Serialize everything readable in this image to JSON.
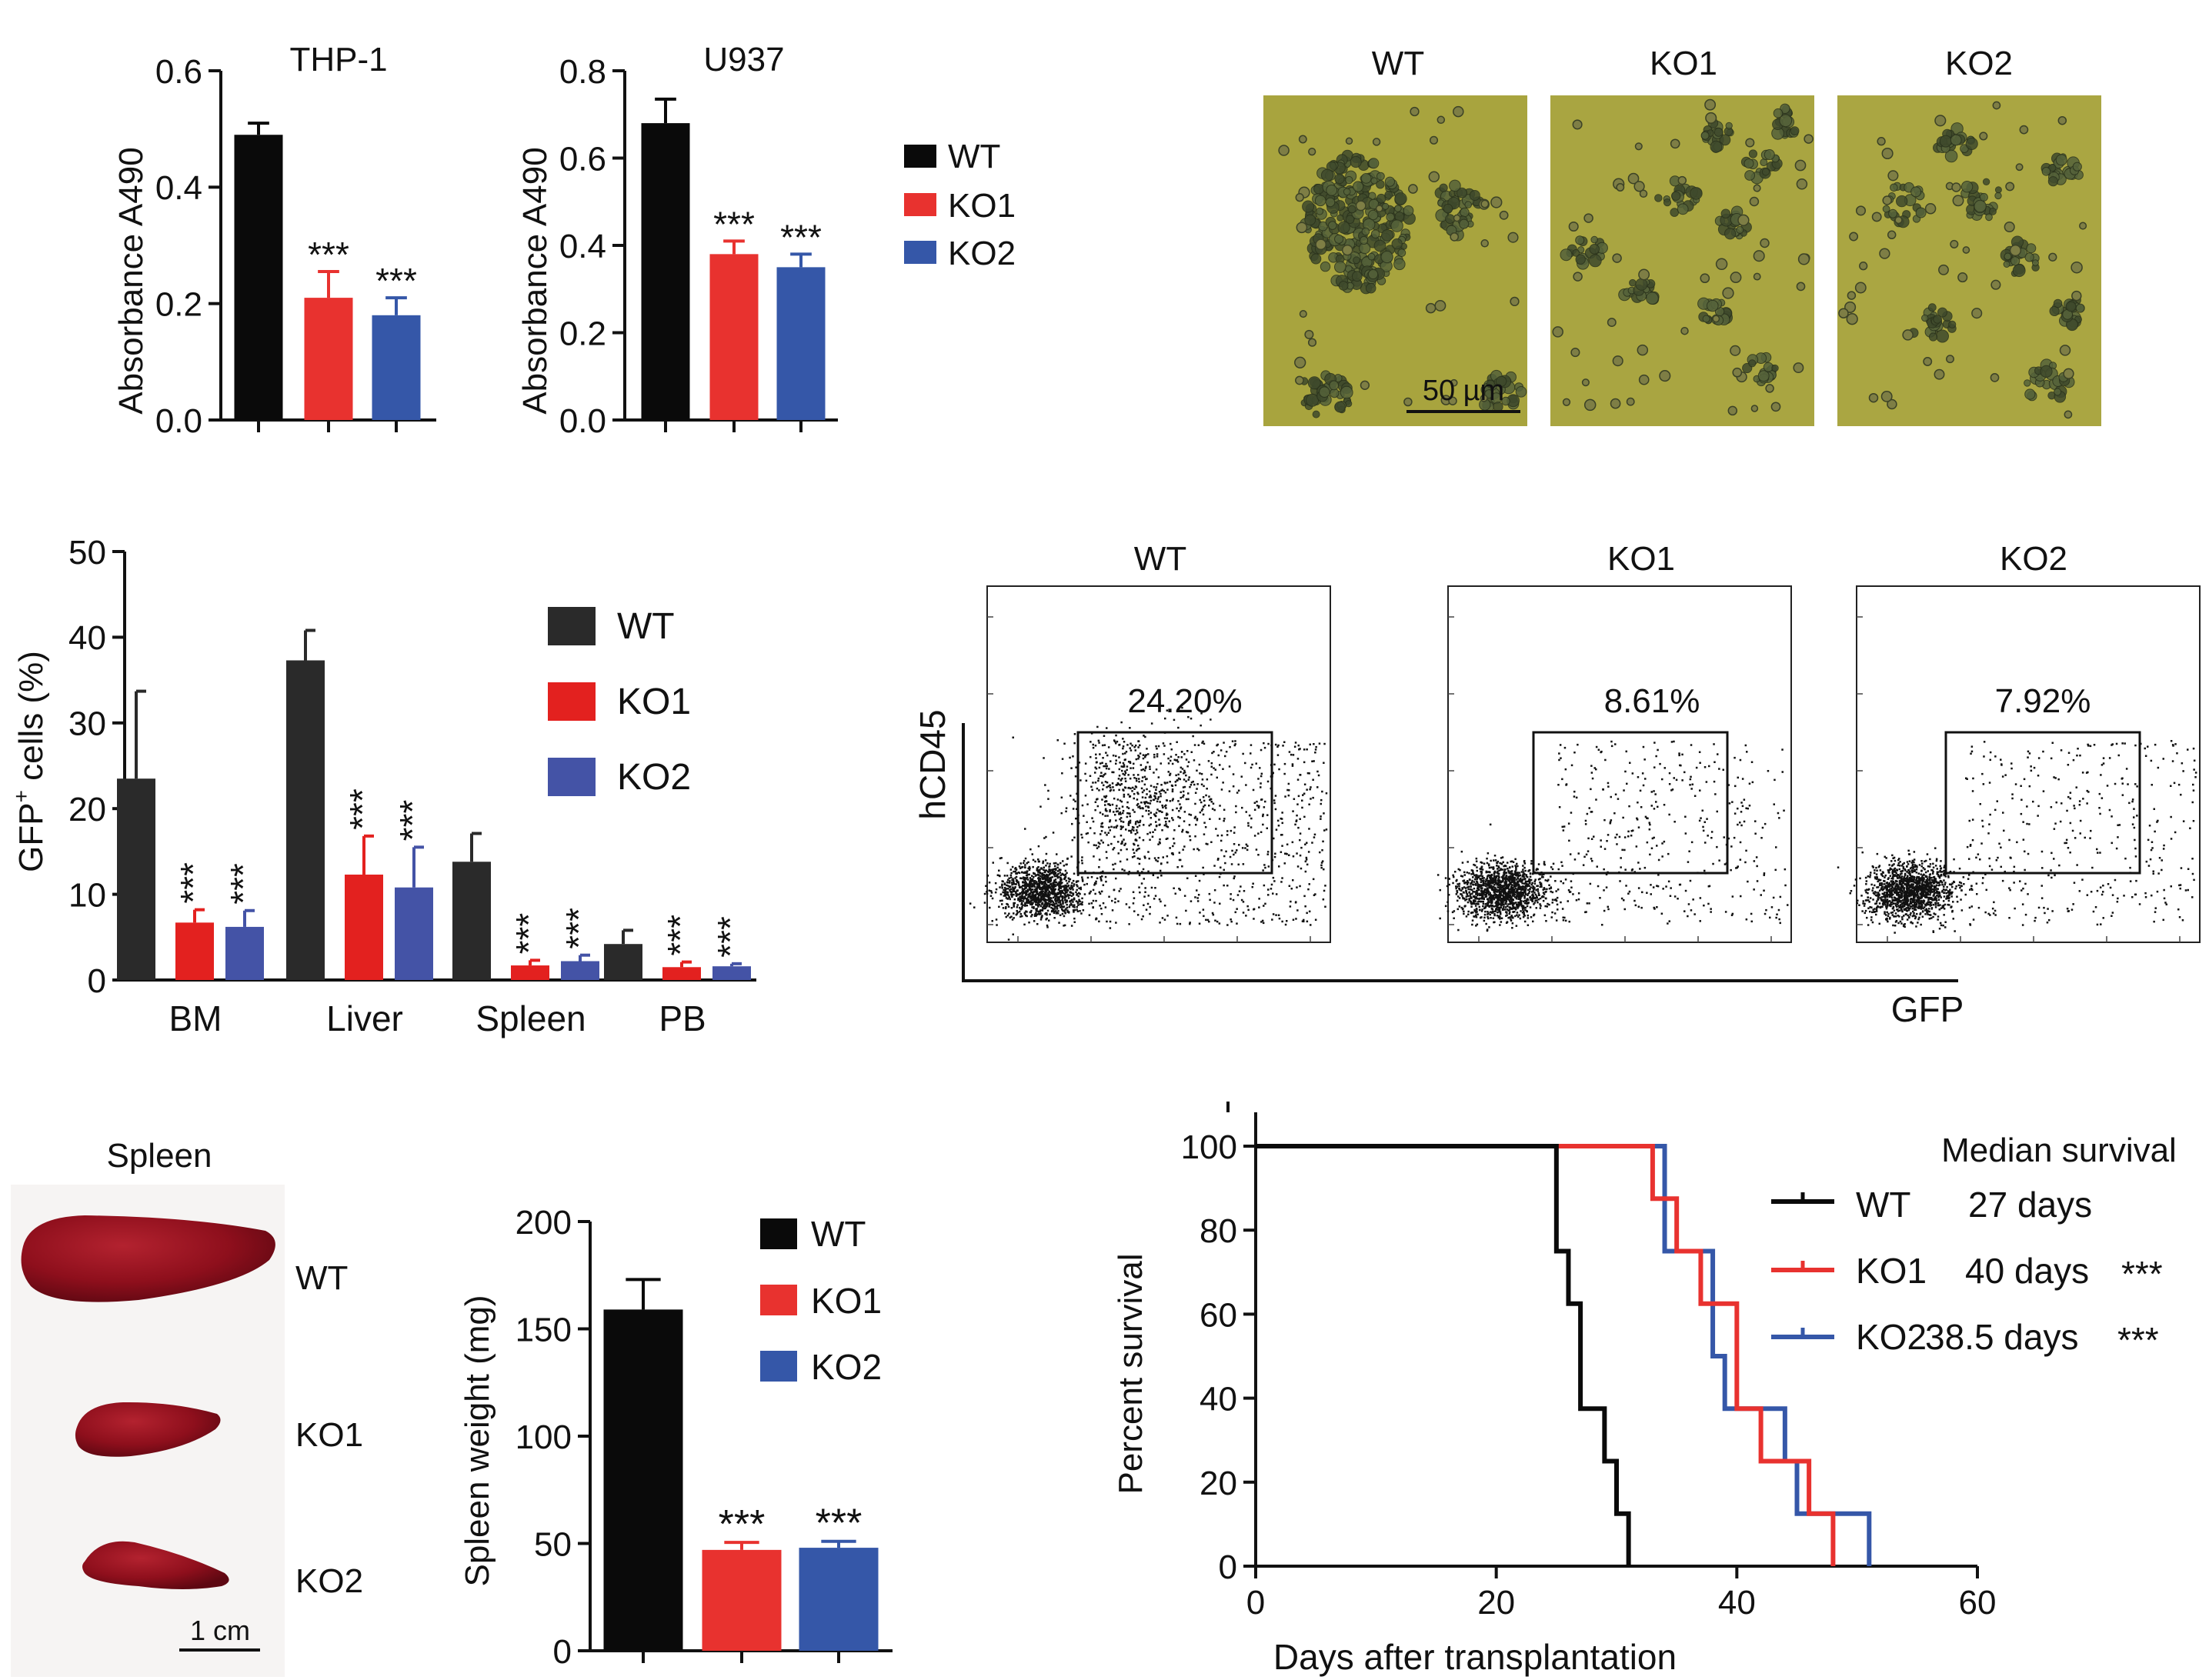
{
  "colors": {
    "wt": "#0a0a0a",
    "ko1": "#e8322f",
    "ko2": "#3557a8",
    "wt_panel_b": "#2a2a2a",
    "ko1_panel_b": "#e3211f",
    "ko2_panel_b": "#4453a6",
    "micro_bg": "#a8a43e",
    "spleen": "#8e0f1c"
  },
  "legend_top": [
    "WT",
    "KO1",
    "KO2"
  ],
  "chart_data": [
    {
      "id": "thp1",
      "type": "bar",
      "title": "THP-1",
      "ylabel": "Absorbance A490",
      "xlabel": "",
      "ylim": [
        0,
        0.6
      ],
      "yticks": [
        "0.0",
        "0.2",
        "0.4",
        "0.6"
      ],
      "categories": [
        "WT",
        "KO1",
        "KO2"
      ],
      "values": [
        0.49,
        0.21,
        0.18
      ],
      "errors": [
        0.02,
        0.045,
        0.03
      ],
      "annotations": [
        "",
        "***",
        "***"
      ]
    },
    {
      "id": "u937",
      "type": "bar",
      "title": "U937",
      "ylabel": "Absorbance A490",
      "xlabel": "",
      "ylim": [
        0,
        0.8
      ],
      "yticks": [
        "0.0",
        "0.2",
        "0.4",
        "0.6",
        "0.8"
      ],
      "categories": [
        "WT",
        "KO1",
        "KO2"
      ],
      "values": [
        0.68,
        0.38,
        0.35
      ],
      "errors": [
        0.055,
        0.03,
        0.03
      ],
      "annotations": [
        "",
        "***",
        "***"
      ]
    },
    {
      "id": "gfp",
      "type": "bar",
      "title": "",
      "ylabel": "GFP",
      "ylabel_sup": "+",
      "ylabel_rest": " cells (%)",
      "ylim": [
        0,
        50
      ],
      "yticks": [
        "0",
        "10",
        "20",
        "30",
        "40",
        "50"
      ],
      "categories": [
        "BM",
        "Liver",
        "Spleen",
        "PB"
      ],
      "series": [
        {
          "name": "WT",
          "values": [
            23.5,
            37.3,
            13.8,
            4.2
          ],
          "errors": [
            10.2,
            3.5,
            3.3,
            1.6
          ]
        },
        {
          "name": "KO1",
          "values": [
            6.7,
            12.3,
            1.7,
            1.5
          ],
          "errors": [
            1.5,
            4.5,
            0.6,
            0.6
          ]
        },
        {
          "name": "KO2",
          "values": [
            6.2,
            10.8,
            2.2,
            1.6
          ],
          "errors": [
            1.9,
            4.7,
            0.7,
            0.3
          ]
        }
      ],
      "annotations": [
        "***",
        "***"
      ],
      "legend": [
        "WT",
        "KO1",
        "KO2"
      ]
    },
    {
      "id": "spleen_weight",
      "type": "bar",
      "title": "",
      "ylabel": "Spleen weight (mg)",
      "ylim": [
        0,
        200
      ],
      "yticks": [
        "0",
        "50",
        "100",
        "150",
        "200"
      ],
      "categories": [
        "WT",
        "KO1",
        "KO2"
      ],
      "values": [
        159,
        47,
        48
      ],
      "errors": [
        14,
        3.5,
        3
      ],
      "annotations": [
        "",
        "***",
        "***"
      ],
      "legend": [
        "WT",
        "KO1",
        "KO2"
      ]
    },
    {
      "id": "survival",
      "type": "line",
      "title": "",
      "xlabel": "Days after transplantation",
      "ylabel": "Percent survival",
      "xlim": [
        0,
        60
      ],
      "ylim": [
        0,
        100
      ],
      "xticks": [
        "0",
        "20",
        "40",
        "60"
      ],
      "yticks": [
        "0",
        "20",
        "40",
        "60",
        "80",
        "100"
      ],
      "legend_title": "Median survival",
      "series": [
        {
          "name": "WT",
          "median": "27 days",
          "sig": "",
          "x": [
            0,
            25,
            25,
            26,
            26,
            27,
            27,
            28,
            28,
            29,
            29,
            30,
            30,
            31,
            31
          ],
          "y": [
            100,
            100,
            75,
            75,
            62.5,
            62.5,
            37.5,
            37.5,
            37.5,
            37.5,
            25,
            25,
            12.5,
            12.5,
            0
          ]
        },
        {
          "name": "KO1",
          "median": "40 days",
          "sig": "***",
          "x": [
            0,
            33,
            33,
            35,
            35,
            37,
            37,
            40,
            40,
            42,
            42,
            46,
            46,
            48,
            48
          ],
          "y": [
            100,
            100,
            87.5,
            87.5,
            75,
            75,
            62.5,
            62.5,
            37.5,
            37.5,
            25,
            25,
            12.5,
            12.5,
            0
          ]
        },
        {
          "name": "KO2",
          "median": "38.5 days",
          "sig": "***",
          "x": [
            0,
            34,
            34,
            38,
            38,
            39,
            39,
            44,
            44,
            45,
            45,
            48,
            48,
            51,
            51
          ],
          "y": [
            100,
            100,
            75,
            75,
            50,
            50,
            37.5,
            37.5,
            25,
            25,
            12.5,
            12.5,
            12.5,
            12.5,
            0
          ]
        }
      ]
    }
  ],
  "micrographs": {
    "labels": [
      "WT",
      "KO1",
      "KO2"
    ],
    "scale_bar": "50 µm"
  },
  "flow": {
    "labels": [
      "WT",
      "KO1",
      "KO2"
    ],
    "percentages": [
      "24.20%",
      "8.61%",
      "7.92%"
    ],
    "ylabel": "hCD45",
    "xlabel": "GFP"
  },
  "spleen_photo": {
    "title": "Spleen",
    "labels": [
      "WT",
      "KO1",
      "KO2"
    ],
    "scale_bar": "1 cm"
  }
}
